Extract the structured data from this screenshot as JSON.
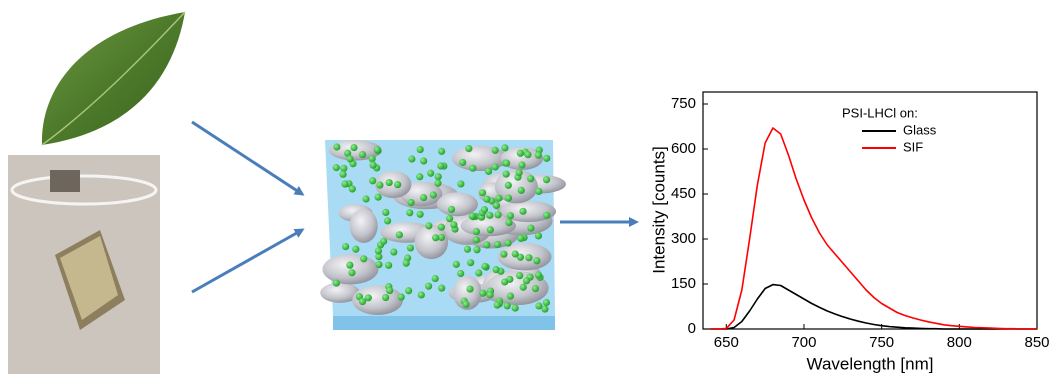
{
  "chart_data": {
    "type": "line",
    "x_label": "Wavelength [nm]",
    "y_label": "Intensity [counts]",
    "legend_title": "PSI-LHCl on:",
    "legend_position": "upper-right",
    "xlim": [
      635,
      850
    ],
    "xticks": [
      650,
      700,
      750,
      800,
      850
    ],
    "ylim": [
      0,
      790
    ],
    "yticks": [
      0,
      150,
      300,
      450,
      600,
      750
    ],
    "x": [
      640,
      645,
      650,
      655,
      660,
      665,
      670,
      675,
      680,
      685,
      690,
      695,
      700,
      705,
      710,
      715,
      720,
      725,
      730,
      735,
      740,
      745,
      750,
      755,
      760,
      765,
      770,
      775,
      780,
      785,
      790,
      795,
      800,
      805,
      810,
      815,
      820,
      825,
      830,
      835,
      840,
      845,
      850
    ],
    "series": [
      {
        "name": "Glass",
        "color": "#000000",
        "values": [
          0,
          0,
          0,
          5,
          25,
          60,
          100,
          135,
          148,
          145,
          130,
          115,
          100,
          85,
          72,
          60,
          50,
          41,
          33,
          26,
          20,
          15,
          11,
          8,
          6,
          4,
          3,
          2,
          1,
          1,
          0,
          0,
          0,
          0,
          0,
          0,
          0,
          0,
          0,
          0,
          0,
          0,
          0
        ]
      },
      {
        "name": "SIF",
        "color": "#ff0000",
        "values": [
          0,
          0,
          2,
          30,
          130,
          300,
          480,
          620,
          670,
          650,
          580,
          500,
          430,
          370,
          320,
          280,
          250,
          220,
          190,
          160,
          130,
          105,
          85,
          70,
          55,
          45,
          37,
          30,
          24,
          19,
          14,
          11,
          9,
          7,
          5,
          4,
          3,
          2,
          1,
          1,
          0,
          0,
          0
        ]
      }
    ]
  }
}
